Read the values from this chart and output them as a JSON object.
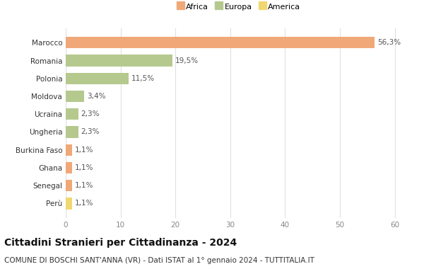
{
  "categories": [
    "Marocco",
    "Romania",
    "Polonia",
    "Moldova",
    "Ucraina",
    "Ungheria",
    "Burkina Faso",
    "Ghana",
    "Senegal",
    "Perù"
  ],
  "values": [
    56.3,
    19.5,
    11.5,
    3.4,
    2.3,
    2.3,
    1.1,
    1.1,
    1.1,
    1.1
  ],
  "labels": [
    "56,3%",
    "19,5%",
    "11,5%",
    "3,4%",
    "2,3%",
    "2,3%",
    "1,1%",
    "1,1%",
    "1,1%",
    "1,1%"
  ],
  "continents": [
    "Africa",
    "Europa",
    "Europa",
    "Europa",
    "Europa",
    "Europa",
    "Africa",
    "Africa",
    "Africa",
    "America"
  ],
  "colors": {
    "Africa": "#F0A878",
    "Europa": "#B5C98E",
    "America": "#F0D870"
  },
  "legend_items": [
    "Africa",
    "Europa",
    "America"
  ],
  "legend_colors": [
    "#F0A878",
    "#B5C98E",
    "#F0D870"
  ],
  "xlim": [
    0,
    63
  ],
  "xticks": [
    0,
    10,
    20,
    30,
    40,
    50,
    60
  ],
  "title": "Cittadini Stranieri per Cittadinanza - 2024",
  "subtitle": "COMUNE DI BOSCHI SANT'ANNA (VR) - Dati ISTAT al 1° gennaio 2024 - TUTTITALIA.IT",
  "background_color": "#ffffff",
  "grid_color": "#e0e0e0",
  "title_fontsize": 10,
  "subtitle_fontsize": 7.5,
  "label_fontsize": 7.5,
  "tick_fontsize": 7.5,
  "bar_height": 0.65
}
